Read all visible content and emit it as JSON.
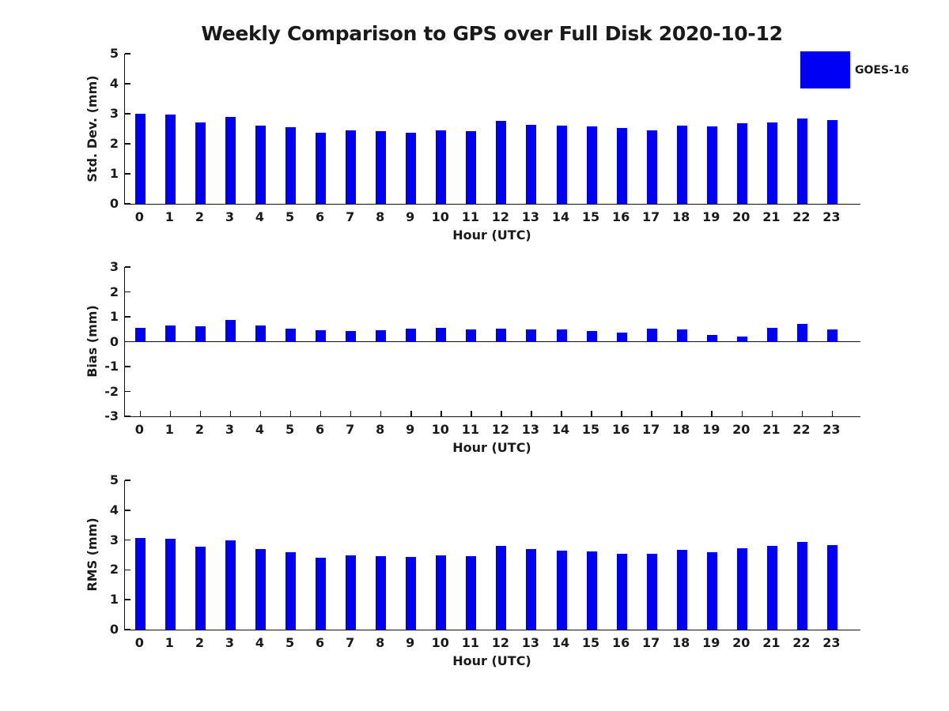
{
  "title": "Weekly Comparison to GPS over Full Disk 2020-10-12",
  "legend": {
    "label": "GOES-16",
    "position": "top-right"
  },
  "colors": {
    "bar": "#0000f2",
    "text": "#1a1a1a",
    "spine": "#111111",
    "background": "#ffffff"
  },
  "chart_data": [
    {
      "type": "bar",
      "series_name": "GOES-16",
      "ylabel": "Std. Dev. (mm)",
      "xlabel": "Hour (UTC)",
      "categories": [
        "0",
        "1",
        "2",
        "3",
        "4",
        "5",
        "6",
        "7",
        "8",
        "9",
        "10",
        "11",
        "12",
        "13",
        "14",
        "15",
        "16",
        "17",
        "18",
        "19",
        "20",
        "21",
        "22",
        "23"
      ],
      "values": [
        3.0,
        2.97,
        2.71,
        2.89,
        2.61,
        2.55,
        2.37,
        2.44,
        2.41,
        2.37,
        2.44,
        2.41,
        2.76,
        2.64,
        2.6,
        2.57,
        2.52,
        2.46,
        2.6,
        2.57,
        2.69,
        2.72,
        2.83,
        2.78
      ],
      "ylim": [
        0,
        5
      ],
      "yticks": [
        0,
        1,
        2,
        3,
        4,
        5
      ],
      "grid": false
    },
    {
      "type": "bar",
      "series_name": "GOES-16",
      "ylabel": "Bias (mm)",
      "xlabel": "Hour (UTC)",
      "categories": [
        "0",
        "1",
        "2",
        "3",
        "4",
        "5",
        "6",
        "7",
        "8",
        "9",
        "10",
        "11",
        "12",
        "13",
        "14",
        "15",
        "16",
        "17",
        "18",
        "19",
        "20",
        "21",
        "22",
        "23"
      ],
      "values": [
        0.57,
        0.66,
        0.63,
        0.87,
        0.66,
        0.52,
        0.46,
        0.43,
        0.47,
        0.51,
        0.55,
        0.49,
        0.52,
        0.48,
        0.5,
        0.42,
        0.35,
        0.51,
        0.49,
        0.26,
        0.2,
        0.57,
        0.72,
        0.5
      ],
      "ylim": [
        -3,
        3
      ],
      "yticks": [
        3,
        2,
        1,
        0,
        -1,
        -2,
        -3
      ],
      "grid": false
    },
    {
      "type": "bar",
      "series_name": "GOES-16",
      "ylabel": "RMS (mm)",
      "xlabel": "Hour (UTC)",
      "categories": [
        "0",
        "1",
        "2",
        "3",
        "4",
        "5",
        "6",
        "7",
        "8",
        "9",
        "10",
        "11",
        "12",
        "13",
        "14",
        "15",
        "16",
        "17",
        "18",
        "19",
        "20",
        "21",
        "22",
        "23"
      ],
      "values": [
        3.06,
        3.03,
        2.77,
        3.0,
        2.7,
        2.6,
        2.41,
        2.49,
        2.46,
        2.43,
        2.5,
        2.47,
        2.8,
        2.7,
        2.65,
        2.62,
        2.54,
        2.54,
        2.66,
        2.59,
        2.72,
        2.81,
        2.93,
        2.83
      ],
      "ylim": [
        0,
        5
      ],
      "yticks": [
        0,
        1,
        2,
        3,
        4,
        5
      ],
      "grid": false
    }
  ]
}
